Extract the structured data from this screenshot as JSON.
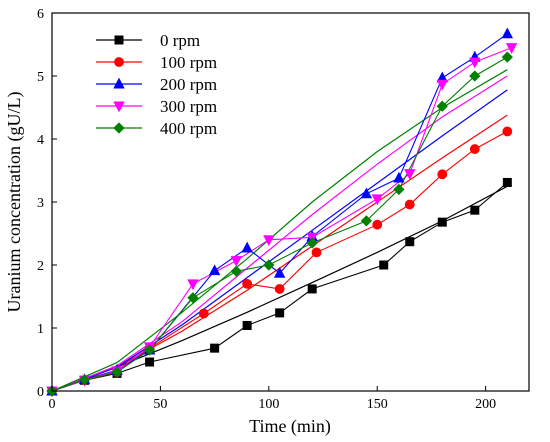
{
  "chart_data": {
    "type": "line",
    "title": "",
    "xlabel": "Time (min)",
    "ylabel": "Uranium concentration (gU/L)",
    "xlim": [
      0,
      220
    ],
    "ylim": [
      0,
      6
    ],
    "xticks": [
      0,
      50,
      100,
      150,
      200
    ],
    "yticks": [
      0,
      1,
      2,
      3,
      4,
      5,
      6
    ],
    "grid": false,
    "legend_position": "top-left",
    "series": [
      {
        "name": "0 rpm",
        "color": "#000000",
        "marker": "square",
        "points": [
          [
            0,
            0
          ],
          [
            15,
            0.17
          ],
          [
            30,
            0.28
          ],
          [
            45,
            0.46
          ],
          [
            75,
            0.68
          ],
          [
            90,
            1.04
          ],
          [
            105,
            1.24
          ],
          [
            120,
            1.62
          ],
          [
            153,
            2.0
          ],
          [
            165,
            2.37
          ],
          [
            180,
            2.68
          ],
          [
            195,
            2.87
          ],
          [
            210,
            3.31
          ]
        ],
        "fit": [
          [
            0,
            0
          ],
          [
            30,
            0.38
          ],
          [
            60,
            0.8
          ],
          [
            90,
            1.25
          ],
          [
            120,
            1.72
          ],
          [
            150,
            2.2
          ],
          [
            180,
            2.7
          ],
          [
            210,
            3.25
          ]
        ]
      },
      {
        "name": "100 rpm",
        "color": "#ff0000",
        "marker": "circle",
        "points": [
          [
            0,
            0
          ],
          [
            15,
            0.17
          ],
          [
            30,
            0.3
          ],
          [
            45,
            0.68
          ],
          [
            70,
            1.23
          ],
          [
            90,
            1.7
          ],
          [
            105,
            1.62
          ],
          [
            122,
            2.2
          ],
          [
            150,
            2.64
          ],
          [
            165,
            2.96
          ],
          [
            180,
            3.44
          ],
          [
            195,
            3.84
          ],
          [
            210,
            4.12
          ]
        ],
        "fit": [
          [
            0,
            0
          ],
          [
            30,
            0.38
          ],
          [
            60,
            0.95
          ],
          [
            90,
            1.6
          ],
          [
            120,
            2.3
          ],
          [
            150,
            3.0
          ],
          [
            180,
            3.7
          ],
          [
            210,
            4.38
          ]
        ]
      },
      {
        "name": "200 rpm",
        "color": "#0000ff",
        "marker": "triangle-up",
        "points": [
          [
            0,
            0
          ],
          [
            15,
            0.18
          ],
          [
            30,
            0.33
          ],
          [
            45,
            0.65
          ],
          [
            75,
            1.91
          ],
          [
            90,
            2.27
          ],
          [
            105,
            1.87
          ],
          [
            120,
            2.45
          ],
          [
            145,
            3.13
          ],
          [
            160,
            3.38
          ],
          [
            180,
            4.97
          ],
          [
            195,
            5.3
          ],
          [
            210,
            5.67
          ]
        ],
        "fit": [
          [
            0,
            0
          ],
          [
            30,
            0.38
          ],
          [
            60,
            1.05
          ],
          [
            90,
            1.8
          ],
          [
            120,
            2.55
          ],
          [
            150,
            3.3
          ],
          [
            180,
            4.05
          ],
          [
            210,
            4.78
          ]
        ]
      },
      {
        "name": "300 rpm",
        "color": "#ff00ff",
        "marker": "triangle-down",
        "points": [
          [
            0,
            0
          ],
          [
            15,
            0.17
          ],
          [
            30,
            0.32
          ],
          [
            45,
            0.7
          ],
          [
            65,
            1.7
          ],
          [
            85,
            2.07
          ],
          [
            100,
            2.4
          ],
          [
            120,
            2.44
          ],
          [
            150,
            3.05
          ],
          [
            165,
            3.45
          ],
          [
            180,
            4.87
          ],
          [
            195,
            5.22
          ],
          [
            212,
            5.45
          ]
        ],
        "fit": [
          [
            0,
            0
          ],
          [
            30,
            0.4
          ],
          [
            60,
            1.1
          ],
          [
            90,
            1.95
          ],
          [
            120,
            2.8
          ],
          [
            150,
            3.6
          ],
          [
            180,
            4.35
          ],
          [
            210,
            5.0
          ]
        ]
      },
      {
        "name": "400 rpm",
        "color": "#008000",
        "marker": "diamond",
        "points": [
          [
            0,
            0
          ],
          [
            15,
            0.18
          ],
          [
            30,
            0.3
          ],
          [
            45,
            0.65
          ],
          [
            65,
            1.48
          ],
          [
            85,
            1.9
          ],
          [
            100,
            2.0
          ],
          [
            120,
            2.35
          ],
          [
            145,
            2.7
          ],
          [
            160,
            3.2
          ],
          [
            180,
            4.52
          ],
          [
            195,
            5.0
          ],
          [
            210,
            5.3
          ]
        ],
        "fit": [
          [
            0,
            0
          ],
          [
            30,
            0.45
          ],
          [
            60,
            1.25
          ],
          [
            90,
            2.1
          ],
          [
            120,
            3.0
          ],
          [
            150,
            3.8
          ],
          [
            180,
            4.5
          ],
          [
            210,
            5.1
          ]
        ]
      }
    ]
  }
}
